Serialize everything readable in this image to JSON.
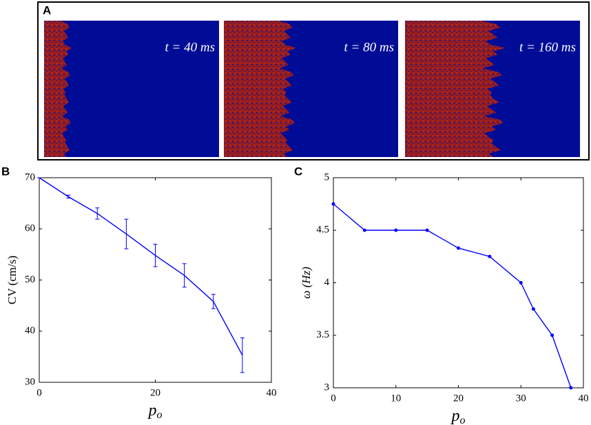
{
  "panel_a": {
    "label": "A",
    "images": [
      {
        "caption": "t = 40 ms"
      },
      {
        "caption": "t = 80 ms"
      },
      {
        "caption": "t = 160 ms"
      }
    ]
  },
  "chart_data": [
    {
      "type": "line",
      "panel_label": "B",
      "ylabel": "CV  (cm/s)",
      "xlabel": {
        "base": "p",
        "sub": "o"
      },
      "x": [
        0,
        5,
        10,
        15,
        20,
        25,
        30,
        35
      ],
      "series": [
        {
          "color": "#0000ff",
          "values": [
            70,
            66.3,
            63,
            59,
            54.8,
            50.9,
            45.8,
            35.3
          ],
          "errors": [
            0,
            0.3,
            1.1,
            2.9,
            2.2,
            2.3,
            1.4,
            3.4
          ]
        }
      ],
      "xlim": [
        0,
        40
      ],
      "xticks": [
        0,
        20,
        40
      ],
      "ylim": [
        30,
        70
      ],
      "yticks": [
        30,
        40,
        50,
        60,
        70
      ],
      "markers": false
    },
    {
      "type": "line",
      "panel_label": "C",
      "ylabel": "ω (Hz)",
      "xlabel": {
        "base": "p",
        "sub": "o"
      },
      "x": [
        0,
        5,
        10,
        15,
        20,
        25,
        30,
        32,
        35,
        38
      ],
      "series": [
        {
          "color": "#0000ff",
          "values": [
            4.75,
            4.5,
            4.5,
            4.5,
            4.33,
            4.25,
            4,
            3.75,
            3.5,
            3
          ]
        }
      ],
      "xlim": [
        0,
        40
      ],
      "xticks": [
        0,
        10,
        20,
        30,
        40
      ],
      "ylim": [
        3,
        5
      ],
      "yticks": [
        3,
        3.5,
        4,
        4.5,
        5
      ],
      "markers": true
    }
  ]
}
